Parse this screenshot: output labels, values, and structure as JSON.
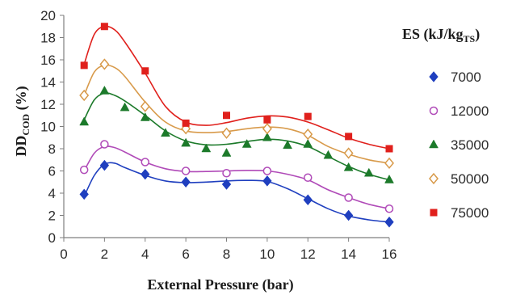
{
  "chart_data": {
    "type": "scatter",
    "xlabel": "External Pressure (bar)",
    "ylabel": {
      "main": "DD",
      "sub": "COD",
      "tail": " (%)"
    },
    "xlim": [
      0,
      16
    ],
    "ylim": [
      0,
      20
    ],
    "xticks": [
      "0",
      "2",
      "4",
      "6",
      "8",
      "10",
      "12",
      "14",
      "16"
    ],
    "yticks": [
      "0",
      "2",
      "4",
      "6",
      "8",
      "10",
      "12",
      "14",
      "16",
      "18",
      "20"
    ],
    "grid": false,
    "legend": {
      "title": {
        "main": "ES (kJ/kg",
        "sub": "TS",
        "tail": ")"
      },
      "placement": "right"
    },
    "series": [
      {
        "name": "7000",
        "color": "#1f3fbf",
        "marker": "diamond-filled",
        "x": [
          1,
          2,
          4,
          6,
          8,
          10,
          12,
          14,
          16
        ],
        "y": [
          3.9,
          6.5,
          5.7,
          5.0,
          4.8,
          5.1,
          3.4,
          2.0,
          1.4
        ],
        "curve": [
          [
            1,
            3.7
          ],
          [
            1.5,
            5.6
          ],
          [
            2,
            6.6
          ],
          [
            2.5,
            6.7
          ],
          [
            3,
            6.3
          ],
          [
            4,
            5.6
          ],
          [
            5,
            5.1
          ],
          [
            6,
            4.95
          ],
          [
            7,
            5.0
          ],
          [
            8,
            5.1
          ],
          [
            9,
            5.15
          ],
          [
            10,
            5.05
          ],
          [
            11,
            4.4
          ],
          [
            12,
            3.5
          ],
          [
            13,
            2.6
          ],
          [
            14,
            1.95
          ],
          [
            15,
            1.6
          ],
          [
            16,
            1.4
          ]
        ]
      },
      {
        "name": "12000",
        "color": "#b04ab8",
        "marker": "circle-open",
        "x": [
          1,
          2,
          4,
          6,
          8,
          10,
          12,
          14,
          16
        ],
        "y": [
          6.1,
          8.4,
          6.8,
          6.0,
          5.8,
          6.0,
          5.4,
          3.6,
          2.6
        ],
        "curve": [
          [
            1,
            6.0
          ],
          [
            1.5,
            7.6
          ],
          [
            2,
            8.2
          ],
          [
            2.5,
            8.1
          ],
          [
            3,
            7.7
          ],
          [
            4,
            6.8
          ],
          [
            5,
            6.2
          ],
          [
            6,
            5.95
          ],
          [
            7,
            5.95
          ],
          [
            8,
            6.0
          ],
          [
            9,
            6.05
          ],
          [
            10,
            6.0
          ],
          [
            11,
            5.7
          ],
          [
            12,
            5.2
          ],
          [
            13,
            4.3
          ],
          [
            14,
            3.6
          ],
          [
            15,
            3.0
          ],
          [
            16,
            2.6
          ]
        ]
      },
      {
        "name": "35000",
        "color": "#1c7a2a",
        "marker": "triangle-filled",
        "x": [
          1,
          2,
          3,
          4,
          5,
          6,
          7,
          8,
          9,
          10,
          11,
          12,
          13,
          14,
          15,
          16
        ],
        "y": [
          10.4,
          13.2,
          11.7,
          10.8,
          9.4,
          8.5,
          8.0,
          7.6,
          8.4,
          9.0,
          8.3,
          8.4,
          7.4,
          6.3,
          5.8,
          5.2
        ],
        "curve": [
          [
            1,
            10.6
          ],
          [
            1.5,
            12.4
          ],
          [
            2,
            13.0
          ],
          [
            2.5,
            12.8
          ],
          [
            3,
            12.3
          ],
          [
            4,
            11.0
          ],
          [
            5,
            9.6
          ],
          [
            6,
            8.7
          ],
          [
            7,
            8.35
          ],
          [
            8,
            8.4
          ],
          [
            9,
            8.65
          ],
          [
            10,
            8.85
          ],
          [
            11,
            8.7
          ],
          [
            12,
            8.2
          ],
          [
            13,
            7.3
          ],
          [
            14,
            6.4
          ],
          [
            15,
            5.7
          ],
          [
            16,
            5.2
          ]
        ]
      },
      {
        "name": "50000",
        "color": "#d89a4a",
        "marker": "diamond-open",
        "x": [
          1,
          2,
          4,
          6,
          8,
          10,
          12,
          14,
          16
        ],
        "y": [
          12.8,
          15.6,
          11.8,
          9.8,
          9.4,
          9.8,
          9.3,
          7.6,
          6.7
        ],
        "curve": [
          [
            1,
            12.8
          ],
          [
            1.5,
            14.9
          ],
          [
            2,
            15.5
          ],
          [
            2.5,
            15.3
          ],
          [
            3,
            14.5
          ],
          [
            4,
            12.2
          ],
          [
            5,
            10.4
          ],
          [
            6,
            9.6
          ],
          [
            7,
            9.45
          ],
          [
            8,
            9.55
          ],
          [
            9,
            9.8
          ],
          [
            10,
            9.95
          ],
          [
            11,
            9.8
          ],
          [
            12,
            9.2
          ],
          [
            13,
            8.2
          ],
          [
            14,
            7.5
          ],
          [
            15,
            7.0
          ],
          [
            16,
            6.7
          ]
        ]
      },
      {
        "name": "75000",
        "color": "#e0201c",
        "marker": "square-filled",
        "x": [
          1,
          2,
          4,
          6,
          8,
          10,
          12,
          14,
          16
        ],
        "y": [
          15.5,
          19.0,
          15.0,
          10.3,
          11.0,
          10.6,
          10.9,
          9.1,
          8.0
        ],
        "curve": [
          [
            1,
            15.6
          ],
          [
            1.5,
            18.3
          ],
          [
            2,
            19.0
          ],
          [
            2.5,
            18.7
          ],
          [
            3,
            17.6
          ],
          [
            4,
            14.8
          ],
          [
            5,
            11.8
          ],
          [
            6,
            10.4
          ],
          [
            7,
            10.1
          ],
          [
            8,
            10.35
          ],
          [
            9,
            10.75
          ],
          [
            10,
            10.95
          ],
          [
            11,
            10.85
          ],
          [
            12,
            10.4
          ],
          [
            13,
            9.7
          ],
          [
            14,
            8.95
          ],
          [
            15,
            8.4
          ],
          [
            16,
            8.0
          ]
        ]
      }
    ]
  }
}
